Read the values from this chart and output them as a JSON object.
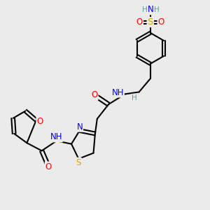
{
  "bg_color": "#ebebeb",
  "atom_colors": {
    "C": "#000000",
    "N": "#0000ff",
    "O": "#ff0000",
    "S": "#ccaa00",
    "H": "#5f9ea0"
  },
  "bond_color": "#000000",
  "bond_width": 1.5,
  "font_size_atom": 8.5,
  "fig_width": 3.0,
  "fig_height": 3.0
}
